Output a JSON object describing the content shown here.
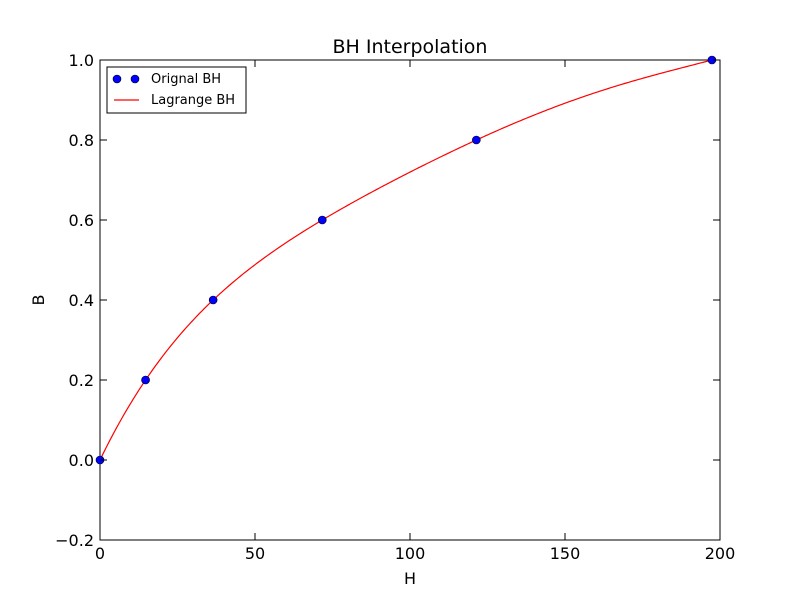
{
  "chart_data": {
    "type": "line",
    "title": "BH Interpolation",
    "xlabel": "H",
    "ylabel": "B",
    "xlim": [
      0,
      200
    ],
    "ylim": [
      -0.2,
      1.0
    ],
    "xticks": [
      0,
      50,
      100,
      150,
      200
    ],
    "yticks": [
      -0.2,
      0.0,
      0.2,
      0.4,
      0.6,
      0.8,
      1.0
    ],
    "xtick_labels": [
      "0",
      "50",
      "100",
      "150",
      "200"
    ],
    "ytick_labels": [
      "−0.2",
      "0.0",
      "0.2",
      "0.4",
      "0.6",
      "0.8",
      "1.0"
    ],
    "grid": false,
    "legend_position": "top-left",
    "series": [
      {
        "name": "Orignal BH",
        "kind": "scatter",
        "color": "#0000ff",
        "x": [
          0,
          14.7,
          36.5,
          71.7,
          121.4,
          197.4
        ],
        "y": [
          0.0,
          0.2,
          0.4,
          0.6,
          0.8,
          1.0
        ]
      },
      {
        "name": "Lagrange BH",
        "kind": "line",
        "color": "#ff0000",
        "interpolation": "lagrange",
        "x_range": [
          0,
          197.4
        ]
      }
    ]
  }
}
